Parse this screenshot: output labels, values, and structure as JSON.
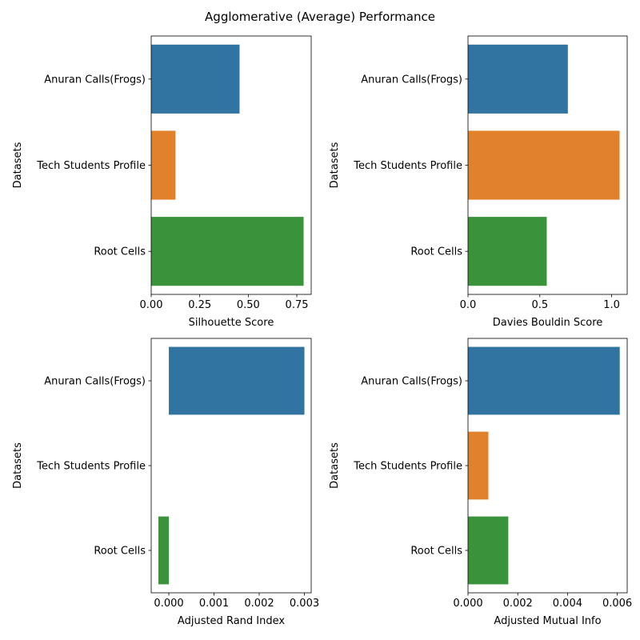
{
  "figure": {
    "title": "Agglomerative (Average) Performance"
  },
  "chart_data": [
    {
      "type": "bar",
      "orientation": "horizontal",
      "categories": [
        "Anuran Calls(Frogs)",
        "Tech Students Profile",
        "Root Cells"
      ],
      "values": [
        0.455,
        0.125,
        0.785
      ],
      "xlabel": "Silhouette Score",
      "ylabel": "Datasets",
      "xlim": [
        0,
        0.824
      ],
      "xticks": [
        0.0,
        0.25,
        0.5,
        0.75
      ],
      "xtick_labels": [
        "0.00",
        "0.25",
        "0.50",
        "0.75"
      ],
      "colors": [
        "#3274a1",
        "#e1812c",
        "#3a923a"
      ]
    },
    {
      "type": "bar",
      "orientation": "horizontal",
      "categories": [
        "Anuran Calls(Frogs)",
        "Tech Students Profile",
        "Root Cells"
      ],
      "values": [
        0.695,
        1.055,
        0.548
      ],
      "xlabel": "Davies Bouldin Score",
      "ylabel": "Datasets",
      "xlim": [
        0,
        1.108
      ],
      "xticks": [
        0.0,
        0.5,
        1.0
      ],
      "xtick_labels": [
        "0.0",
        "0.5",
        "1.0"
      ],
      "colors": [
        "#3274a1",
        "#e1812c",
        "#3a923a"
      ]
    },
    {
      "type": "bar",
      "orientation": "horizontal",
      "categories": [
        "Anuran Calls(Frogs)",
        "Tech Students Profile",
        "Root Cells"
      ],
      "values": [
        0.003,
        0.0,
        -0.00023
      ],
      "xlabel": "Adjusted Rand Index",
      "ylabel": "Datasets",
      "xlim": [
        -0.00039,
        0.00315
      ],
      "xticks": [
        0.0,
        0.001,
        0.002,
        0.003
      ],
      "xtick_labels": [
        "0.000",
        "0.001",
        "0.002",
        "0.003"
      ],
      "colors": [
        "#3274a1",
        "#e1812c",
        "#3a923a"
      ]
    },
    {
      "type": "bar",
      "orientation": "horizontal",
      "categories": [
        "Anuran Calls(Frogs)",
        "Tech Students Profile",
        "Root Cells"
      ],
      "values": [
        0.0061,
        0.00082,
        0.00162
      ],
      "xlabel": "Adjusted Mutual Info",
      "ylabel": "Datasets",
      "xlim": [
        0,
        0.0064
      ],
      "xticks": [
        0.0,
        0.002,
        0.004,
        0.006
      ],
      "xtick_labels": [
        "0.000",
        "0.002",
        "0.004",
        "0.006"
      ],
      "colors": [
        "#3274a1",
        "#e1812c",
        "#3a923a"
      ]
    }
  ]
}
